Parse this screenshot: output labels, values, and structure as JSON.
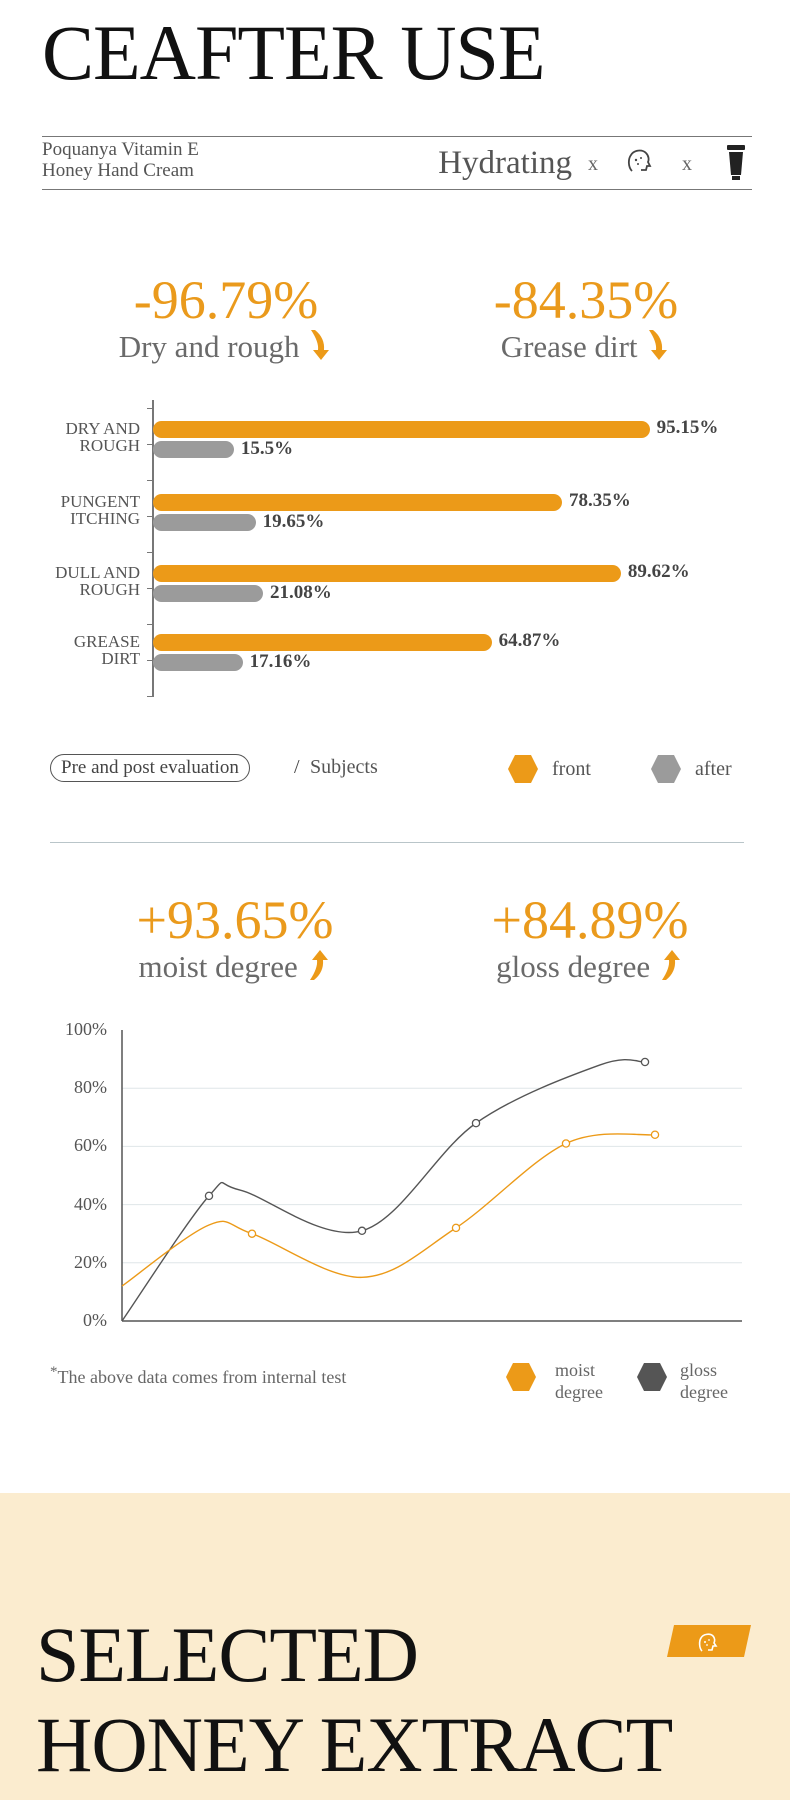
{
  "header": {
    "title": "CEAFTER USE"
  },
  "product": {
    "name_line1": "Poquanya Vitamin E",
    "name_line2": "Honey Hand Cream",
    "feature": "Hydrating",
    "x1": "x",
    "x2": "x"
  },
  "top_stats": [
    {
      "value": "-96.79%",
      "label": "Dry and rough"
    },
    {
      "value": "-84.35%",
      "label": "Grease dirt"
    }
  ],
  "bar_section": {
    "pill": "Pre and post evaluation",
    "slash": "/",
    "subjects": "Subjects",
    "legend_front": "front",
    "legend_after": "after"
  },
  "bottom_stats": [
    {
      "value": "+93.65%",
      "label": "moist degree"
    },
    {
      "value": "+84.89%",
      "label": "gloss degree"
    }
  ],
  "line_section": {
    "footnote_mark": "*",
    "footnote": "The above data comes from internal test",
    "legend_moist_1": "moist",
    "legend_moist_2": "degree",
    "legend_gloss_1": "gloss",
    "legend_gloss_2": "degree"
  },
  "footer": {
    "title_line1": "SELECTED",
    "title_line2": "HONEY EXTRACT"
  },
  "colors": {
    "accent": "#ec9a18",
    "after": "#9b9b9b",
    "gloss": "#555555"
  },
  "chart_data": [
    {
      "type": "bar",
      "orientation": "horizontal",
      "categories": [
        [
          "DRY AND",
          "ROUGH"
        ],
        [
          "PUNGENT",
          "ITCHING"
        ],
        [
          "DULL AND",
          "ROUGH"
        ],
        [
          "GREASE",
          "DIRT"
        ]
      ],
      "series": [
        {
          "name": "front",
          "values": [
            95.15,
            78.35,
            89.62,
            64.87
          ],
          "labels": [
            "95.15%",
            "78.35%",
            "89.62%",
            "64.87%"
          ]
        },
        {
          "name": "after",
          "values": [
            15.5,
            19.65,
            21.08,
            17.16
          ],
          "labels": [
            "15.5%",
            "19.65%",
            "21.08%",
            "17.16%"
          ]
        }
      ],
      "xlim": [
        0,
        100
      ]
    },
    {
      "type": "line",
      "yticks": [
        "0%",
        "20%",
        "40%",
        "60%",
        "80%",
        "100%"
      ],
      "ylim": [
        0,
        100
      ],
      "grid": true,
      "series": [
        {
          "name": "moist degree",
          "x": [
            1,
            2,
            3,
            4,
            5,
            6
          ],
          "values": [
            33,
            30,
            15,
            32,
            61,
            64
          ]
        },
        {
          "name": "gloss degree",
          "x": [
            1,
            2,
            3,
            4,
            5,
            6
          ],
          "values": [
            43,
            45,
            31,
            68,
            88,
            89
          ]
        }
      ],
      "markers": [
        {
          "series": 1,
          "x": 1,
          "y": 43
        },
        {
          "series": 0,
          "x": 2,
          "y": 30
        },
        {
          "series": 1,
          "x": 3,
          "y": 31
        },
        {
          "series": 0,
          "x": 4,
          "y": 32
        },
        {
          "series": 1,
          "x": 4,
          "y": 68
        },
        {
          "series": 0,
          "x": 5,
          "y": 61
        },
        {
          "series": 0,
          "x": 6,
          "y": 64
        },
        {
          "series": 1,
          "x": 6,
          "y": 89
        }
      ]
    }
  ]
}
